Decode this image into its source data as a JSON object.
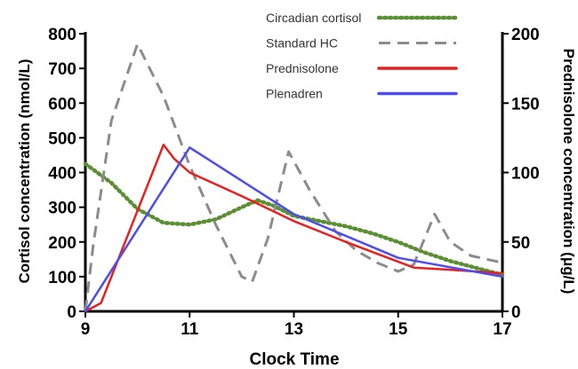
{
  "chart_data": {
    "type": "line",
    "xlabel": "Clock Time",
    "ylabel_left": "Cortisol concentration (nmol/L)",
    "ylabel_right": "Prednisolone concentration (μg/L)",
    "xlim": [
      9,
      17
    ],
    "ylim_left": [
      0,
      800
    ],
    "ylim_right": [
      0,
      200
    ],
    "x_ticks": [
      "9",
      "11",
      "13",
      "15",
      "17"
    ],
    "y_ticks_left": [
      "0",
      "100",
      "200",
      "300",
      "400",
      "500",
      "600",
      "700",
      "800"
    ],
    "y_ticks_right": [
      "0",
      "50",
      "100",
      "150",
      "200"
    ],
    "grid": false,
    "legend_position": "top-right",
    "series": [
      {
        "name": "Circadian cortisol",
        "axis": "left",
        "color": "#5a8f32",
        "style": "dotted",
        "x": [
          9,
          9.5,
          10,
          10.5,
          11,
          11.5,
          12,
          12.3,
          12.6,
          13,
          13.5,
          14,
          14.5,
          15,
          15.5,
          16,
          16.5,
          17
        ],
        "y": [
          425,
          370,
          295,
          255,
          250,
          265,
          300,
          320,
          305,
          275,
          260,
          245,
          225,
          200,
          170,
          145,
          125,
          105
        ]
      },
      {
        "name": "Standard HC",
        "axis": "left",
        "color": "#8c8c8c",
        "style": "dashed",
        "x": [
          9,
          9.15,
          9.5,
          10,
          10.5,
          11,
          11.5,
          12,
          12.2,
          12.5,
          12.9,
          13.3,
          13.8,
          14.2,
          14.6,
          15,
          15.3,
          15.7,
          16,
          16.4,
          17
        ],
        "y": [
          0,
          190,
          550,
          770,
          620,
          420,
          250,
          100,
          85,
          210,
          460,
          350,
          230,
          175,
          140,
          115,
          135,
          280,
          200,
          160,
          140
        ]
      },
      {
        "name": "Prednisolone",
        "axis": "right",
        "color": "#e8201f",
        "style": "solid",
        "x": [
          9,
          9.3,
          10.5,
          10.7,
          11,
          12,
          13,
          14,
          15.3,
          16,
          17
        ],
        "y": [
          0,
          6,
          120,
          110,
          100,
          83,
          65,
          50,
          31.5,
          30,
          27.5
        ]
      },
      {
        "name": "Plenadren",
        "axis": "right",
        "color": "#4c4cf0",
        "style": "solid",
        "x": [
          9,
          11,
          13,
          15,
          17
        ],
        "y": [
          0,
          118,
          70,
          38.5,
          25
        ]
      }
    ]
  }
}
